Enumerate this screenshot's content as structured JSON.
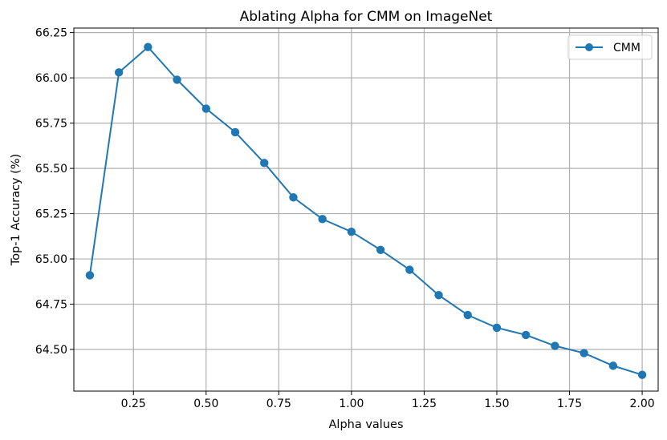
{
  "chart_data": {
    "type": "line",
    "title": "Ablating Alpha for CMM on ImageNet",
    "xlabel": "Alpha values",
    "ylabel": "Top-1 Accuracy (%)",
    "xlim": [
      0.045,
      2.055
    ],
    "ylim": [
      64.27,
      66.275
    ],
    "xticks": [
      0.25,
      0.5,
      0.75,
      1.0,
      1.25,
      1.5,
      1.75,
      2.0
    ],
    "xtick_labels": [
      "0.25",
      "0.50",
      "0.75",
      "1.00",
      "1.25",
      "1.50",
      "1.75",
      "2.00"
    ],
    "yticks": [
      64.5,
      64.75,
      65.0,
      65.25,
      65.5,
      65.75,
      66.0,
      66.25
    ],
    "ytick_labels": [
      "64.50",
      "64.75",
      "65.00",
      "65.25",
      "65.50",
      "65.75",
      "66.00",
      "66.25"
    ],
    "grid": true,
    "legend_position": "top-right",
    "series": [
      {
        "name": "CMM",
        "color": "#1f77b4",
        "marker": "circle",
        "x": [
          0.1,
          0.2,
          0.3,
          0.4,
          0.5,
          0.6,
          0.7,
          0.8,
          0.9,
          1.0,
          1.1,
          1.2,
          1.3,
          1.4,
          1.5,
          1.6,
          1.7,
          1.8,
          1.9,
          2.0
        ],
        "y": [
          64.91,
          66.03,
          66.17,
          65.99,
          65.83,
          65.7,
          65.53,
          65.34,
          65.22,
          65.15,
          65.05,
          64.94,
          64.8,
          64.69,
          64.62,
          64.58,
          64.52,
          64.48,
          64.41,
          64.36
        ]
      }
    ]
  }
}
